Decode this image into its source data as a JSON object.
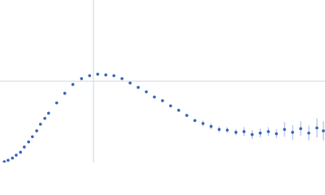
{
  "chart_data": {
    "type": "scatter",
    "xlim": [
      0,
      6.02
    ],
    "ylim": [
      0,
      2.208
    ],
    "xticks": [
      1.732
    ],
    "yticks": [
      1.104
    ],
    "grid": true,
    "series": [
      {
        "color": "#3563b5",
        "x": [
          0.08,
          0.15,
          0.23,
          0.3,
          0.38,
          0.45,
          0.53,
          0.6,
          0.68,
          0.75,
          0.83,
          0.9,
          1.05,
          1.2,
          1.35,
          1.51,
          1.66,
          1.81,
          1.96,
          2.11,
          2.26,
          2.41,
          2.56,
          2.71,
          2.86,
          3.01,
          3.16,
          3.31,
          3.46,
          3.61,
          3.76,
          3.91,
          4.06,
          4.21,
          4.37,
          4.52,
          4.67,
          4.82,
          4.97,
          5.12,
          5.27,
          5.42,
          5.57,
          5.72,
          5.87,
          5.99
        ],
        "values": [
          0.01,
          0.03,
          0.06,
          0.1,
          0.14,
          0.21,
          0.28,
          0.35,
          0.43,
          0.52,
          0.6,
          0.67,
          0.81,
          0.94,
          1.06,
          1.14,
          1.18,
          1.2,
          1.19,
          1.18,
          1.14,
          1.08,
          1.02,
          0.96,
          0.89,
          0.84,
          0.77,
          0.71,
          0.64,
          0.57,
          0.53,
          0.49,
          0.45,
          0.44,
          0.41,
          0.42,
          0.38,
          0.4,
          0.42,
          0.39,
          0.45,
          0.41,
          0.46,
          0.4,
          0.47,
          0.43
        ],
        "errors": [
          0.01,
          0.01,
          0.01,
          0.01,
          0.01,
          0.01,
          0.01,
          0.01,
          0.01,
          0.01,
          0.01,
          0.01,
          0.01,
          0.01,
          0.01,
          0.01,
          0.01,
          0.01,
          0.01,
          0.01,
          0.01,
          0.01,
          0.01,
          0.01,
          0.01,
          0.02,
          0.02,
          0.02,
          0.02,
          0.02,
          0.04,
          0.04,
          0.04,
          0.04,
          0.04,
          0.06,
          0.06,
          0.06,
          0.06,
          0.06,
          0.1,
          0.1,
          0.1,
          0.1,
          0.13,
          0.13
        ]
      }
    ]
  }
}
